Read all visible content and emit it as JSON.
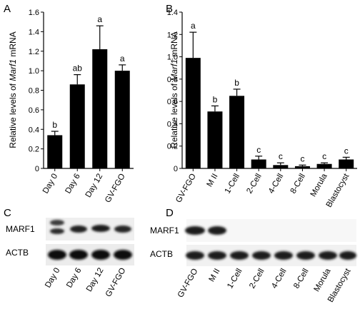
{
  "panels": {
    "a": "A",
    "b": "B",
    "c": "C",
    "d": "D"
  },
  "ylabel_prefix": "Relative levels of ",
  "ylabel_gene": "Marf1",
  "ylabel_suffix": " mRNA",
  "chart_data": [
    {
      "type": "bar",
      "panel": "A",
      "categories": [
        "Day 0",
        "Day 6",
        "Day 12",
        "GV-FGO"
      ],
      "values": [
        0.34,
        0.86,
        1.22,
        1.0
      ],
      "errors": [
        0.04,
        0.1,
        0.24,
        0.06
      ],
      "significance": [
        "b",
        "ab",
        "a",
        "a"
      ],
      "ylim": [
        0,
        1.6
      ],
      "yticks": [
        "0",
        "0.2",
        "0.4",
        "0.6",
        "0.8",
        "1.0",
        "1.2",
        "1.4",
        "1.6"
      ],
      "bar_color": "#000000"
    },
    {
      "type": "bar",
      "panel": "B",
      "categories": [
        "GV-FGO",
        "M II",
        "1-Cell",
        "2-Cell",
        "4-Cell",
        "8-Cell",
        "Morula",
        "Blastocyst"
      ],
      "values": [
        0.99,
        0.51,
        0.65,
        0.08,
        0.03,
        0.02,
        0.04,
        0.08
      ],
      "errors": [
        0.23,
        0.05,
        0.06,
        0.03,
        0.02,
        0.01,
        0.01,
        0.02
      ],
      "significance": [
        "a",
        "b",
        "b",
        "c",
        "c",
        "c",
        "c",
        "c"
      ],
      "ylim": [
        0,
        1.4
      ],
      "yticks": [
        "0",
        "0.2",
        "0.4",
        "0.6",
        "0.8",
        "1.0",
        "1.2",
        "1.4"
      ],
      "bar_color": "#000000"
    }
  ],
  "blots": {
    "c": {
      "rows": [
        "MARF1",
        "ACTB"
      ],
      "lanes": [
        "Day 0",
        "Day 6",
        "Day 12",
        "GV-FGO"
      ]
    },
    "d": {
      "rows": [
        "MARF1",
        "ACTB"
      ],
      "lanes": [
        "GV-FGO",
        "M II",
        "1-Cell",
        "2-Cell",
        "4-Cell",
        "8-Cell",
        "Morula",
        "Blastocyst"
      ]
    }
  }
}
